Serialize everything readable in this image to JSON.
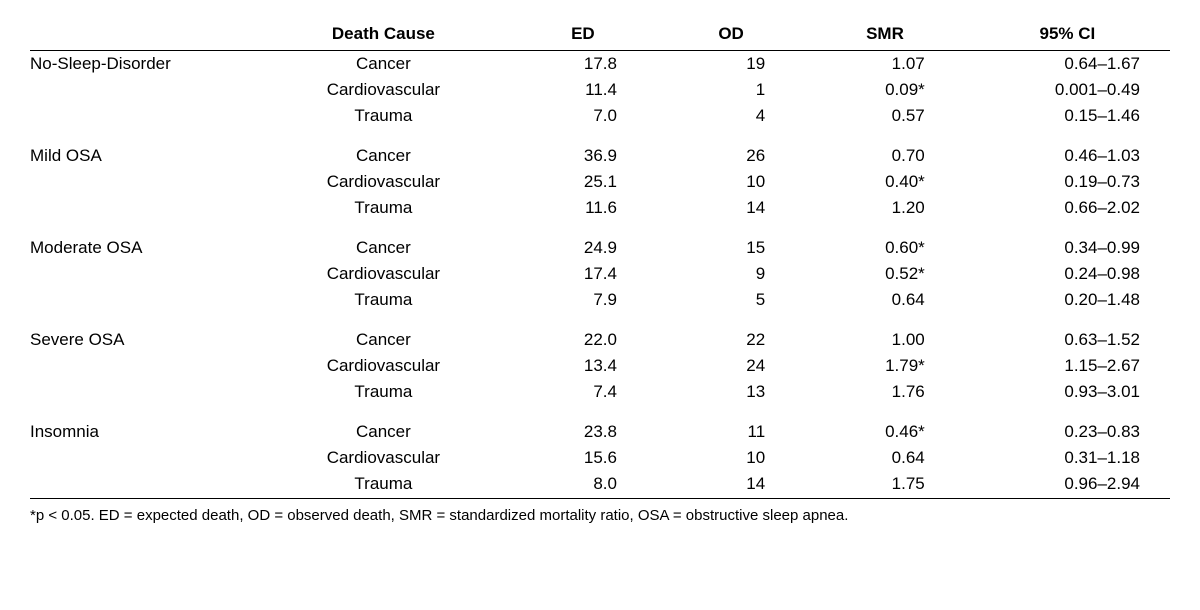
{
  "headers": {
    "group": "",
    "cause": "Death Cause",
    "ed": "ED",
    "od": "OD",
    "smr": "SMR",
    "ci": "95% CI"
  },
  "groups": [
    {
      "label": "No-Sleep-Disorder",
      "rows": [
        {
          "cause": "Cancer",
          "ed": "17.8",
          "od": "19",
          "smr": "1.07",
          "ci": "0.64–1.67"
        },
        {
          "cause": "Cardiovascular",
          "ed": "11.4",
          "od": "1",
          "smr": "0.09*",
          "ci": "0.001–0.49"
        },
        {
          "cause": "Trauma",
          "ed": "7.0",
          "od": "4",
          "smr": "0.57",
          "ci": "0.15–1.46"
        }
      ]
    },
    {
      "label": "Mild OSA",
      "rows": [
        {
          "cause": "Cancer",
          "ed": "36.9",
          "od": "26",
          "smr": "0.70",
          "ci": "0.46–1.03"
        },
        {
          "cause": "Cardiovascular",
          "ed": "25.1",
          "od": "10",
          "smr": "0.40*",
          "ci": "0.19–0.73"
        },
        {
          "cause": "Trauma",
          "ed": "11.6",
          "od": "14",
          "smr": "1.20",
          "ci": "0.66–2.02"
        }
      ]
    },
    {
      "label": "Moderate OSA",
      "rows": [
        {
          "cause": "Cancer",
          "ed": "24.9",
          "od": "15",
          "smr": "0.60*",
          "ci": "0.34–0.99"
        },
        {
          "cause": "Cardiovascular",
          "ed": "17.4",
          "od": "9",
          "smr": "0.52*",
          "ci": "0.24–0.98"
        },
        {
          "cause": "Trauma",
          "ed": "7.9",
          "od": "5",
          "smr": "0.64",
          "ci": "0.20–1.48"
        }
      ]
    },
    {
      "label": "Severe OSA",
      "rows": [
        {
          "cause": "Cancer",
          "ed": "22.0",
          "od": "22",
          "smr": "1.00",
          "ci": "0.63–1.52"
        },
        {
          "cause": "Cardiovascular",
          "ed": "13.4",
          "od": "24",
          "smr": "1.79*",
          "ci": "1.15–2.67"
        },
        {
          "cause": "Trauma",
          "ed": "7.4",
          "od": "13",
          "smr": "1.76",
          "ci": "0.93–3.01"
        }
      ]
    },
    {
      "label": "Insomnia",
      "rows": [
        {
          "cause": "Cancer",
          "ed": "23.8",
          "od": "11",
          "smr": "0.46*",
          "ci": "0.23–0.83"
        },
        {
          "cause": "Cardiovascular",
          "ed": "15.6",
          "od": "10",
          "smr": "0.64",
          "ci": "0.31–1.18"
        },
        {
          "cause": "Trauma",
          "ed": "8.0",
          "od": "14",
          "smr": "1.75",
          "ci": "0.96–2.94"
        }
      ]
    }
  ],
  "footnote": "*p < 0.05. ED = expected death, OD = observed death, SMR = standardized mortality ratio, OSA = obstructive sleep apnea."
}
